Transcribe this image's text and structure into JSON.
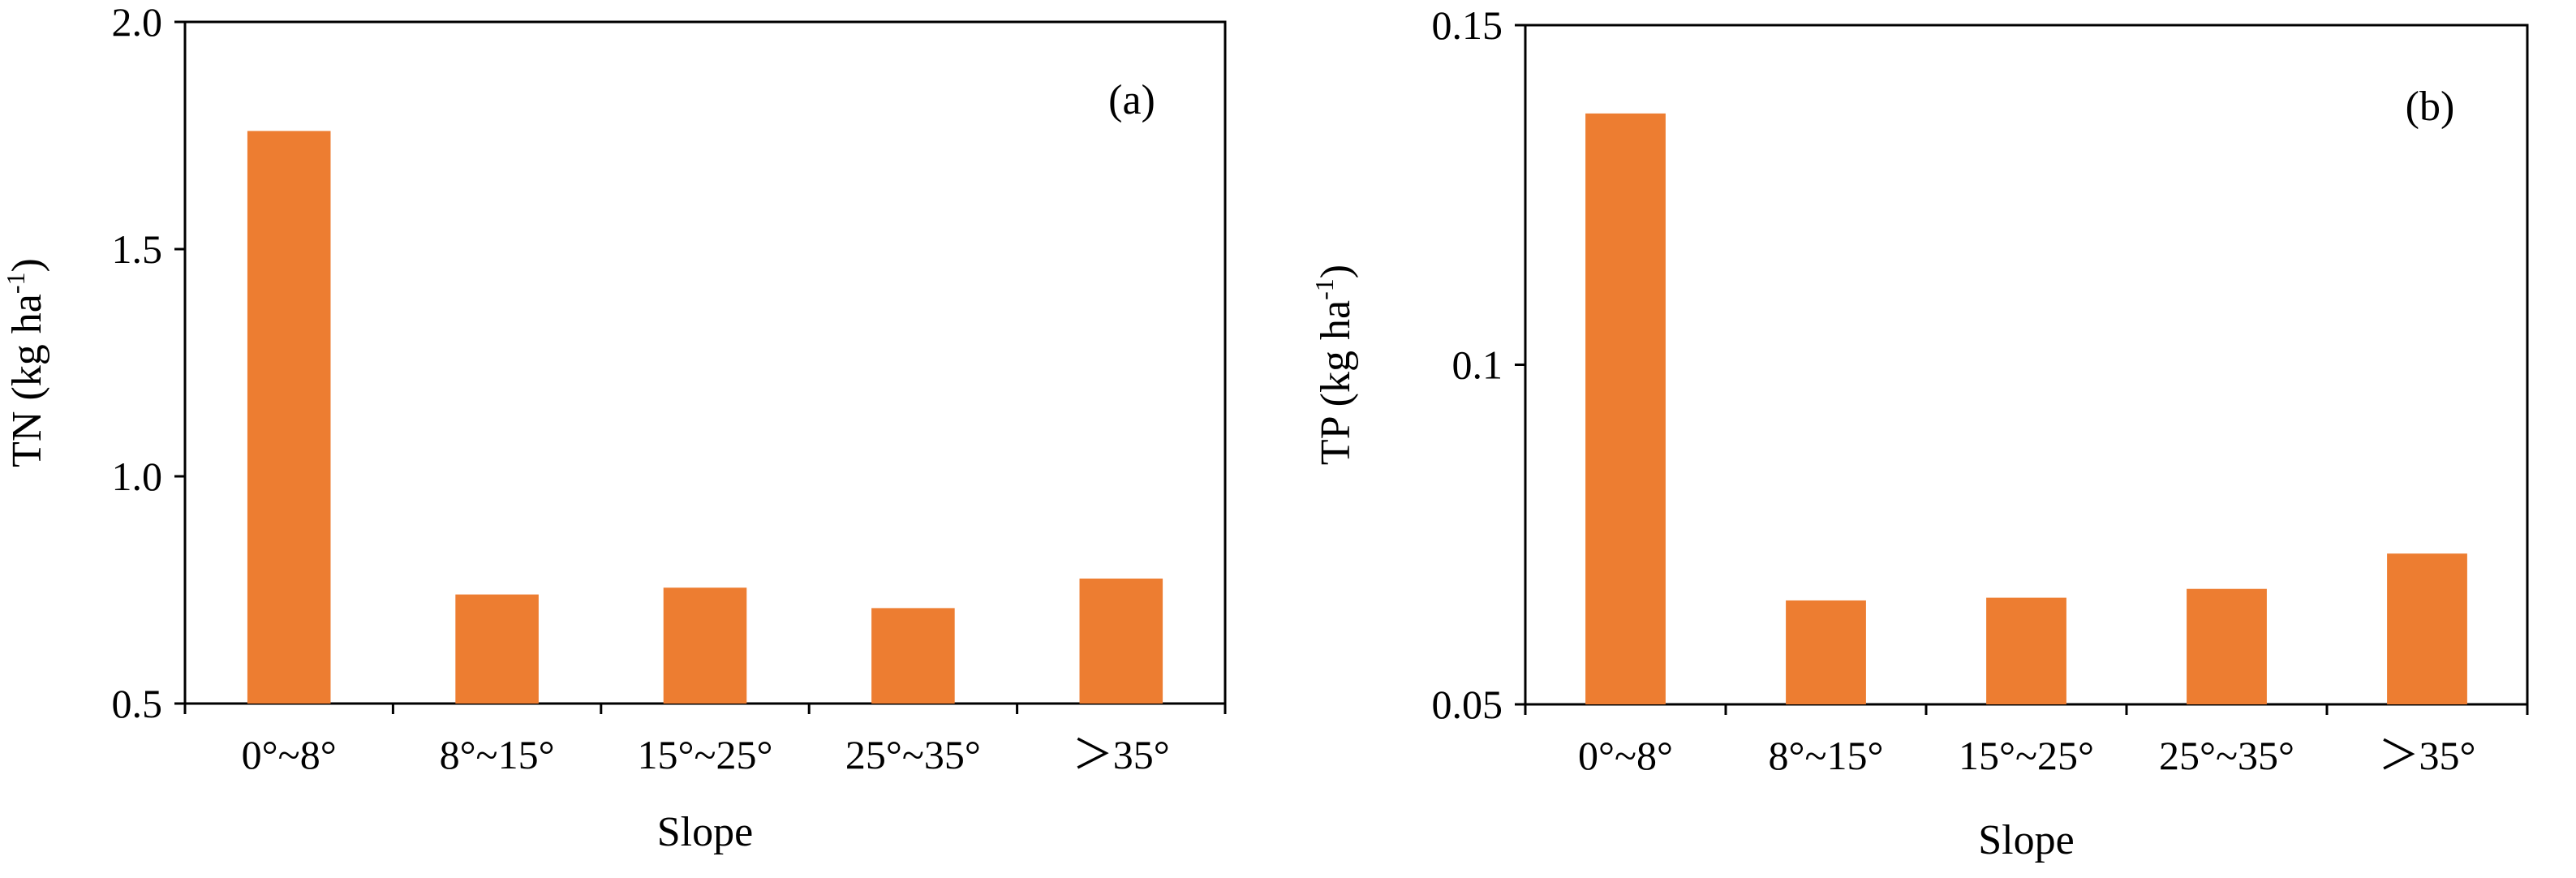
{
  "chart_data": [
    {
      "type": "bar",
      "panel_label": "(a)",
      "categories": [
        "0°~8°",
        "8°~15°",
        "15°~25°",
        "25°~35°",
        "＞35°"
      ],
      "values": [
        1.76,
        0.74,
        0.755,
        0.71,
        0.775
      ],
      "xlabel": "Slope",
      "ylabel": {
        "main": "TN (kg ha",
        "sup": "-1",
        "tail": ")"
      },
      "ylim": [
        0.5,
        2.0
      ],
      "yticks": [
        0.5,
        1.0,
        1.5,
        2.0
      ],
      "ytick_labels": [
        "0.5",
        "1.0",
        "1.5",
        "2.0"
      ],
      "grid": false,
      "bar_color": "#ED7D31"
    },
    {
      "type": "bar",
      "panel_label": "(b)",
      "categories": [
        "0°~8°",
        "8°~15°",
        "15°~25°",
        "25°~35°",
        "＞35°"
      ],
      "values": [
        0.137,
        0.0653,
        0.0657,
        0.067,
        0.0722
      ],
      "xlabel": "Slope",
      "ylabel": {
        "main": "TP (kg ha",
        "sup": "-1",
        "tail": ")"
      },
      "ylim": [
        0.05,
        0.15
      ],
      "yticks": [
        0.05,
        0.1,
        0.15
      ],
      "ytick_labels": [
        "0.05",
        "0.1",
        "0.15"
      ],
      "grid": false,
      "bar_color": "#ED7D31"
    }
  ]
}
